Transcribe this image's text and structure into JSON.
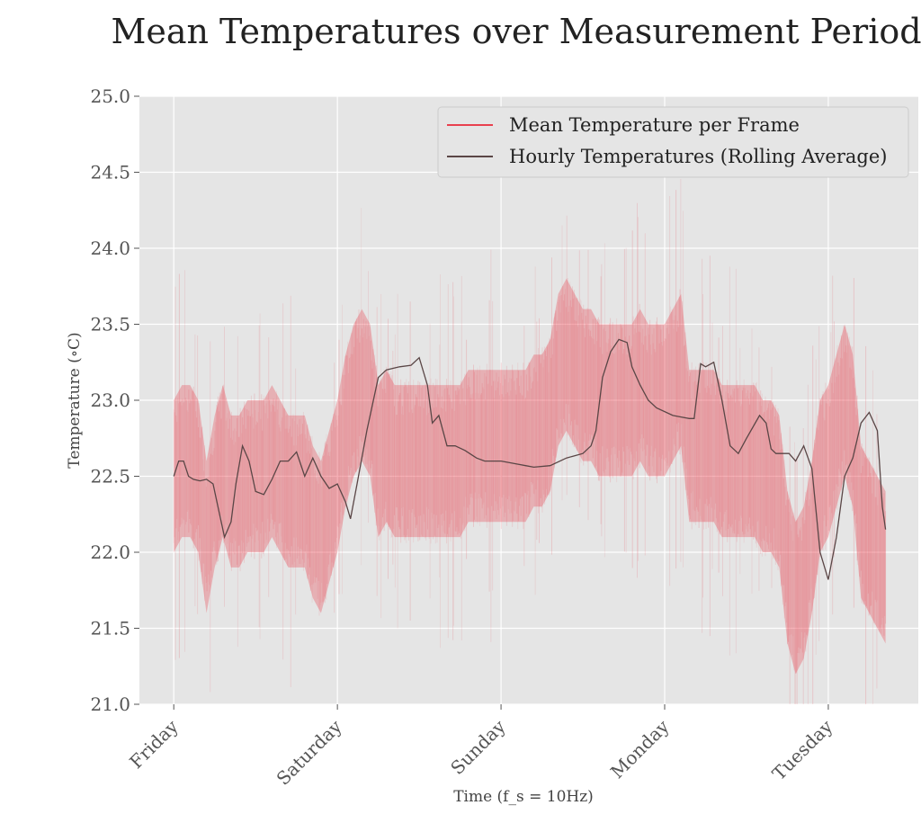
{
  "chart_data": {
    "type": "line",
    "title": "Mean Temperatures over Measurement Period",
    "xlabel": "Time (f_s = 10Hz)",
    "ylabel": "Temperature (∘C)",
    "ylim": [
      21.0,
      25.0
    ],
    "y_ticks": [
      21.0,
      21.5,
      22.0,
      22.5,
      23.0,
      23.5,
      24.0,
      24.5,
      25.0
    ],
    "x_domain": [
      -0.21,
      4.55
    ],
    "x_ticks": [
      {
        "x": 0,
        "label": "Friday"
      },
      {
        "x": 1,
        "label": "Saturday"
      },
      {
        "x": 2,
        "label": "Sunday"
      },
      {
        "x": 3,
        "label": "Monday"
      },
      {
        "x": 4,
        "label": "Tuesday"
      }
    ],
    "grid": true,
    "legend_position": "top-right",
    "colors": {
      "frame": "#e8404f",
      "hourly": "#5a4646",
      "plot_bg": "#e5e5e5",
      "grid": "#ffffff"
    },
    "series": [
      {
        "name": "Mean Temperature per Frame",
        "style": "noisy band",
        "x": [
          0.0,
          0.05,
          0.1,
          0.15,
          0.2,
          0.25,
          0.3,
          0.35,
          0.4,
          0.45,
          0.5,
          0.55,
          0.6,
          0.65,
          0.7,
          0.75,
          0.8,
          0.85,
          0.9,
          0.95,
          1.0,
          1.05,
          1.1,
          1.15,
          1.2,
          1.25,
          1.3,
          1.35,
          1.4,
          1.45,
          1.5,
          1.55,
          1.6,
          1.65,
          1.7,
          1.75,
          1.8,
          1.85,
          1.9,
          1.95,
          2.0,
          2.05,
          2.1,
          2.15,
          2.2,
          2.25,
          2.3,
          2.35,
          2.4,
          2.45,
          2.5,
          2.55,
          2.6,
          2.65,
          2.7,
          2.75,
          2.8,
          2.85,
          2.9,
          2.95,
          3.0,
          3.05,
          3.1,
          3.15,
          3.2,
          3.25,
          3.3,
          3.35,
          3.4,
          3.45,
          3.5,
          3.55,
          3.6,
          3.65,
          3.7,
          3.75,
          3.8,
          3.85,
          3.9,
          3.95,
          4.0,
          4.05,
          4.1,
          4.15,
          4.2,
          4.25,
          4.3,
          4.35
        ],
        "y_low": [
          22.0,
          22.1,
          22.1,
          22.0,
          21.6,
          21.9,
          22.1,
          21.9,
          21.9,
          22.0,
          22.0,
          22.0,
          22.1,
          22.0,
          21.9,
          21.9,
          21.9,
          21.7,
          21.6,
          21.8,
          22.0,
          22.3,
          22.5,
          22.6,
          22.5,
          22.1,
          22.2,
          22.1,
          22.1,
          22.1,
          22.1,
          22.1,
          22.1,
          22.1,
          22.1,
          22.1,
          22.2,
          22.2,
          22.2,
          22.2,
          22.2,
          22.2,
          22.2,
          22.2,
          22.3,
          22.3,
          22.4,
          22.7,
          22.8,
          22.7,
          22.6,
          22.6,
          22.5,
          22.5,
          22.5,
          22.5,
          22.5,
          22.6,
          22.5,
          22.5,
          22.5,
          22.6,
          22.7,
          22.2,
          22.2,
          22.2,
          22.2,
          22.1,
          22.1,
          22.1,
          22.1,
          22.1,
          22.0,
          22.0,
          21.9,
          21.4,
          21.2,
          21.3,
          21.6,
          22.0,
          22.1,
          22.3,
          22.5,
          22.3,
          21.7,
          21.6,
          21.5,
          21.4
        ],
        "y_high": [
          23.0,
          23.1,
          23.1,
          23.0,
          22.6,
          22.9,
          23.1,
          22.9,
          22.9,
          23.0,
          23.0,
          23.0,
          23.1,
          23.0,
          22.9,
          22.9,
          22.9,
          22.7,
          22.6,
          22.8,
          23.0,
          23.3,
          23.5,
          23.6,
          23.5,
          23.1,
          23.2,
          23.1,
          23.1,
          23.1,
          23.1,
          23.1,
          23.1,
          23.1,
          23.1,
          23.1,
          23.2,
          23.2,
          23.2,
          23.2,
          23.2,
          23.2,
          23.2,
          23.2,
          23.3,
          23.3,
          23.4,
          23.7,
          23.8,
          23.7,
          23.6,
          23.6,
          23.5,
          23.5,
          23.5,
          23.5,
          23.5,
          23.6,
          23.5,
          23.5,
          23.5,
          23.6,
          23.7,
          23.2,
          23.2,
          23.2,
          23.2,
          23.1,
          23.1,
          23.1,
          23.1,
          23.1,
          23.0,
          23.0,
          22.9,
          22.4,
          22.2,
          22.3,
          22.6,
          23.0,
          23.1,
          23.3,
          23.5,
          23.3,
          22.7,
          22.6,
          22.5,
          22.4
        ]
      },
      {
        "name": "Hourly Temperatures (Rolling Average)",
        "style": "line",
        "x": [
          0.0,
          0.03,
          0.06,
          0.09,
          0.12,
          0.16,
          0.2,
          0.24,
          0.27,
          0.31,
          0.35,
          0.38,
          0.42,
          0.46,
          0.5,
          0.55,
          0.6,
          0.65,
          0.7,
          0.75,
          0.8,
          0.85,
          0.9,
          0.95,
          1.0,
          1.05,
          1.08,
          1.12,
          1.18,
          1.25,
          1.3,
          1.38,
          1.45,
          1.5,
          1.55,
          1.58,
          1.62,
          1.67,
          1.72,
          1.78,
          1.85,
          1.9,
          2.0,
          2.1,
          2.15,
          2.2,
          2.3,
          2.4,
          2.5,
          2.55,
          2.58,
          2.62,
          2.67,
          2.72,
          2.77,
          2.8,
          2.85,
          2.9,
          2.95,
          3.05,
          3.1,
          3.15,
          3.18,
          3.22,
          3.25,
          3.3,
          3.35,
          3.4,
          3.45,
          3.5,
          3.58,
          3.62,
          3.65,
          3.68,
          3.72,
          3.76,
          3.8,
          3.85,
          3.9,
          3.95,
          4.0,
          4.05,
          4.1,
          4.15,
          4.2,
          4.25,
          4.3,
          4.33,
          4.35
        ],
        "y": [
          22.5,
          22.6,
          22.6,
          22.5,
          22.48,
          22.47,
          22.48,
          22.45,
          22.3,
          22.1,
          22.2,
          22.45,
          22.7,
          22.6,
          22.4,
          22.38,
          22.48,
          22.6,
          22.6,
          22.66,
          22.5,
          22.62,
          22.5,
          22.42,
          22.45,
          22.33,
          22.22,
          22.45,
          22.8,
          23.15,
          23.2,
          23.22,
          23.23,
          23.28,
          23.1,
          22.85,
          22.9,
          22.7,
          22.7,
          22.67,
          22.62,
          22.6,
          22.6,
          22.58,
          22.57,
          22.56,
          22.57,
          22.62,
          22.65,
          22.7,
          22.8,
          23.15,
          23.32,
          23.4,
          23.38,
          23.22,
          23.1,
          23.0,
          22.95,
          22.9,
          22.89,
          22.88,
          22.88,
          23.24,
          23.22,
          23.25,
          23.0,
          22.7,
          22.65,
          22.75,
          22.9,
          22.85,
          22.68,
          22.65,
          22.65,
          22.65,
          22.6,
          22.7,
          22.55,
          22.0,
          21.82,
          22.1,
          22.5,
          22.62,
          22.85,
          22.92,
          22.8,
          22.3,
          22.15
        ]
      }
    ]
  }
}
